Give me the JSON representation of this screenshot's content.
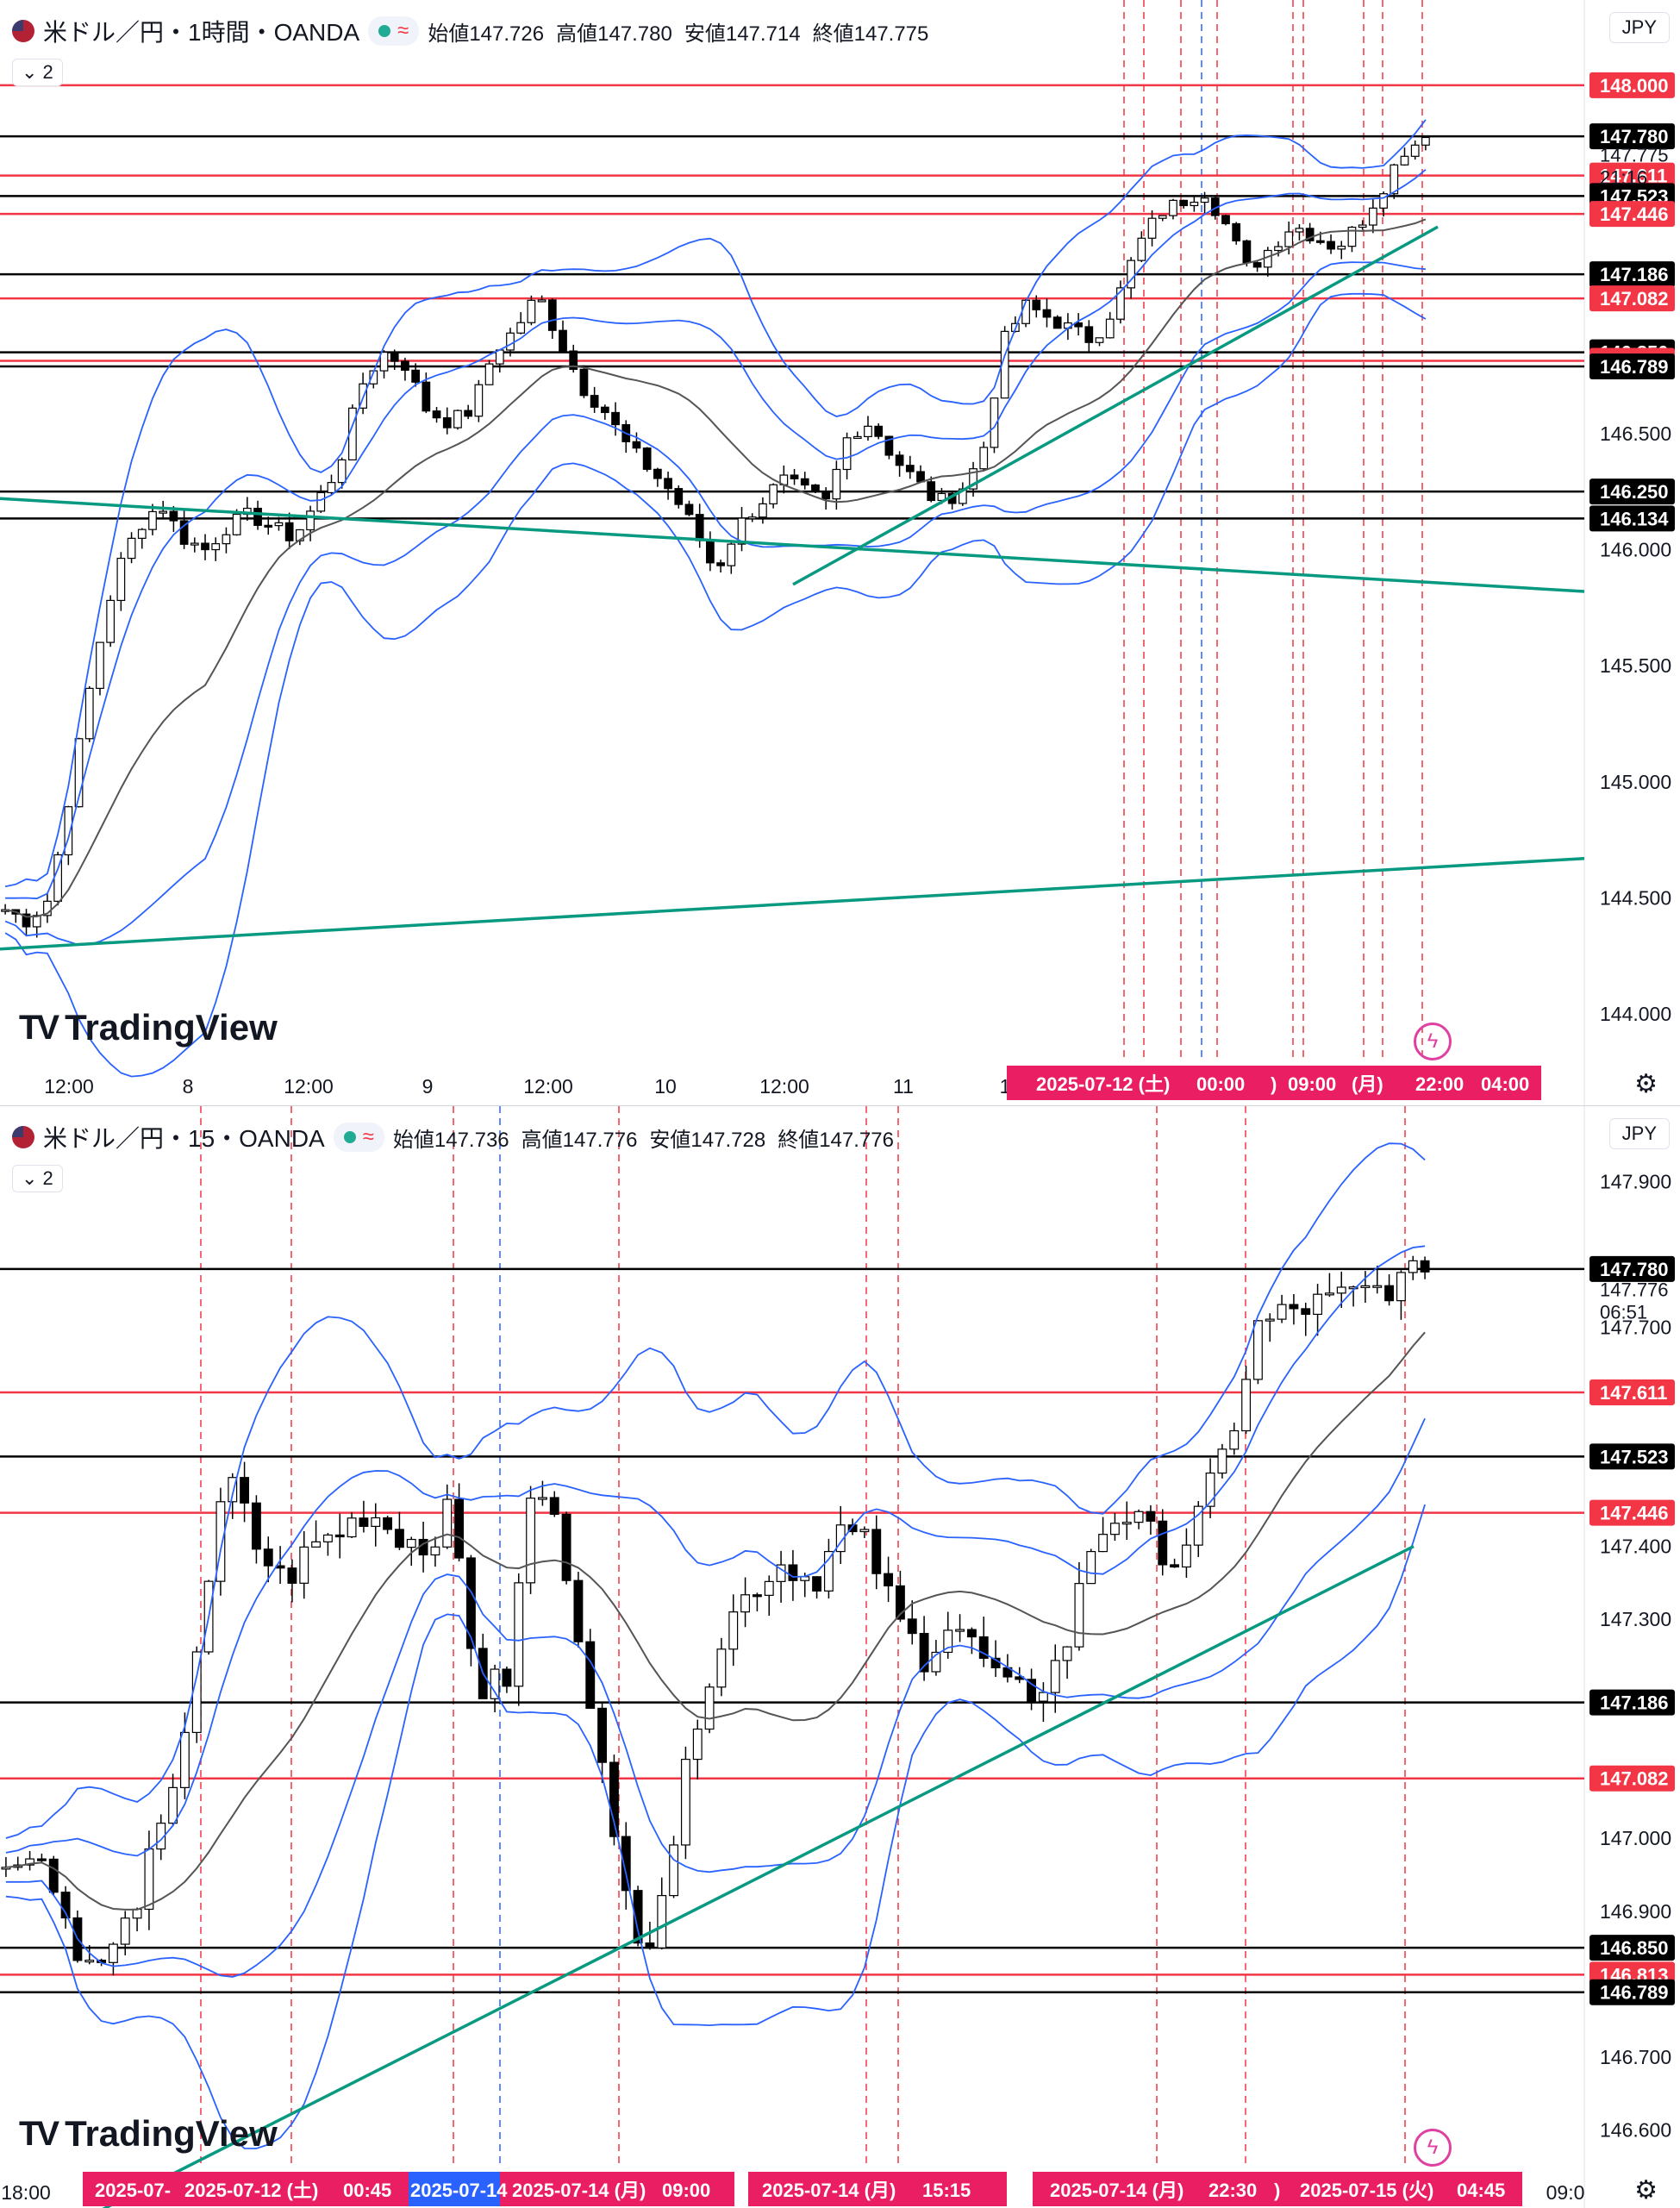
{
  "colors": {
    "bull": "#ffffff",
    "bear": "#000000",
    "wick": "#000000",
    "bb": "#2962ff",
    "ma": "#555555",
    "trend": "#089981",
    "red_level": "#f23645",
    "black_level": "#000000",
    "vline_red": "#f23645",
    "vline_blue": "#2962ff",
    "tag_time": "#e91e63",
    "tag_time_blue": "#2962ff"
  },
  "panels": [
    {
      "legend": {
        "symbol": "米ドル／円・1時間・OANDA",
        "open_label": "始値",
        "open": "147.726",
        "high_label": "高値",
        "high": "147.780",
        "low_label": "安値",
        "low": "147.714",
        "close_label": "終値",
        "close": "147.775"
      },
      "collapse_label": "2",
      "currency": "JPY",
      "watermark": "TradingView",
      "chart_data": {
        "type": "candlestick",
        "timeframe": "1h",
        "ylim": [
          143.8,
          148.2
        ],
        "y_ticks": [
          "146.500",
          "146.000",
          "145.500",
          "145.000",
          "144.500",
          "144.000"
        ],
        "x_ticks": [
          "12:00",
          "8",
          "12:00",
          "9",
          "12:00",
          "10",
          "12:00",
          "11",
          "1"
        ],
        "levels": [
          {
            "price": 148.0,
            "label": "148.000",
            "color": "red"
          },
          {
            "price": 147.78,
            "label": "147.780",
            "color": "black"
          },
          {
            "price": 147.611,
            "label": "147.611",
            "color": "red"
          },
          {
            "price": 147.523,
            "label": "147.523",
            "color": "black"
          },
          {
            "price": 147.446,
            "label": "147.446",
            "color": "red"
          },
          {
            "price": 147.186,
            "label": "147.186",
            "color": "black"
          },
          {
            "price": 147.082,
            "label": "147.082",
            "color": "red"
          },
          {
            "price": 146.85,
            "label": "146.850",
            "color": "black"
          },
          {
            "price": 146.813,
            "label": "146.813",
            "color": "red"
          },
          {
            "price": 146.789,
            "label": "146.789",
            "color": "black"
          },
          {
            "price": 146.25,
            "label": "146.250",
            "color": "black"
          },
          {
            "price": 146.134,
            "label": "146.134",
            "color": "black"
          }
        ],
        "current_price": "147.775",
        "countdown": "21:16",
        "time_tags": [
          "2025-07-12 (土)",
          "00:00",
          ")",
          "09:00",
          "(月)",
          "22:00",
          "04:00"
        ],
        "candles_count": 136,
        "path_closes": [
          144.45,
          144.4,
          144.5,
          145.0,
          145.5,
          145.9,
          146.1,
          146.2,
          146.05,
          146.0,
          146.1,
          146.15,
          146.1,
          146.05,
          146.2,
          146.35,
          146.7,
          146.85,
          146.8,
          146.6,
          146.55,
          146.6,
          146.85,
          146.95,
          147.1,
          146.9,
          146.7,
          146.6,
          146.45,
          146.35,
          146.25,
          146.1,
          145.9,
          146.1,
          146.2,
          146.3,
          146.25,
          146.2,
          146.5,
          146.55,
          146.4,
          146.3,
          146.2,
          146.25,
          146.4,
          146.9,
          147.05,
          147.0,
          146.95,
          146.9,
          147.05,
          147.3,
          147.45,
          147.5,
          147.55,
          147.4,
          147.2,
          147.3,
          147.4,
          147.35,
          147.3,
          147.4,
          147.55,
          147.72,
          147.775
        ]
      }
    },
    {
      "legend": {
        "symbol": "米ドル／円・15・OANDA",
        "open_label": "始値",
        "open": "147.736",
        "high_label": "高値",
        "high": "147.776",
        "low_label": "安値",
        "low": "147.728",
        "close_label": "終値",
        "close": "147.776"
      },
      "collapse_label": "2",
      "currency": "JPY",
      "watermark": "TradingView",
      "chart_data": {
        "type": "candlestick",
        "timeframe": "15m",
        "ylim": [
          146.55,
          147.95
        ],
        "y_ticks": [
          "147.900",
          "147.700",
          "147.400",
          "147.300",
          "147.000",
          "146.900",
          "146.700",
          "146.600"
        ],
        "x_ticks": [
          "18:00",
          "09:0"
        ],
        "levels": [
          {
            "price": 147.78,
            "label": "147.780",
            "color": "black"
          },
          {
            "price": 147.611,
            "label": "147.611",
            "color": "red"
          },
          {
            "price": 147.523,
            "label": "147.523",
            "color": "black"
          },
          {
            "price": 147.446,
            "label": "147.446",
            "color": "red"
          },
          {
            "price": 147.186,
            "label": "147.186",
            "color": "black"
          },
          {
            "price": 147.082,
            "label": "147.082",
            "color": "red"
          },
          {
            "price": 146.85,
            "label": "146.850",
            "color": "black"
          },
          {
            "price": 146.813,
            "label": "146.813",
            "color": "red"
          },
          {
            "price": 146.789,
            "label": "146.789",
            "color": "black"
          }
        ],
        "current_price": "147.776",
        "countdown": "06:51",
        "time_tags": [
          "2025-07-",
          "2025-07-12 (土)",
          "00:45",
          "2025-07-14",
          "2025-07-14 (月)",
          "09:00",
          "2025-07-14 (月)",
          "15:15",
          "2025-07-14 (月)",
          "22:30",
          ")",
          "2025-07-15 (火)",
          "04:45"
        ],
        "candles_count": 120,
        "path_closes": [
          146.95,
          147.0,
          146.9,
          146.82,
          146.85,
          146.95,
          147.05,
          147.3,
          147.5,
          147.4,
          147.35,
          147.4,
          147.42,
          147.45,
          147.42,
          147.4,
          147.45,
          147.2,
          147.22,
          147.5,
          147.4,
          147.2,
          146.95,
          146.85,
          147.0,
          147.2,
          147.3,
          147.35,
          147.38,
          147.35,
          147.42,
          147.4,
          147.3,
          147.25,
          147.3,
          147.25,
          147.2,
          147.2,
          147.25,
          147.4,
          147.45,
          147.42,
          147.38,
          147.45,
          147.55,
          147.7,
          147.72,
          147.73,
          147.74,
          147.75,
          147.76,
          147.776
        ]
      }
    }
  ]
}
